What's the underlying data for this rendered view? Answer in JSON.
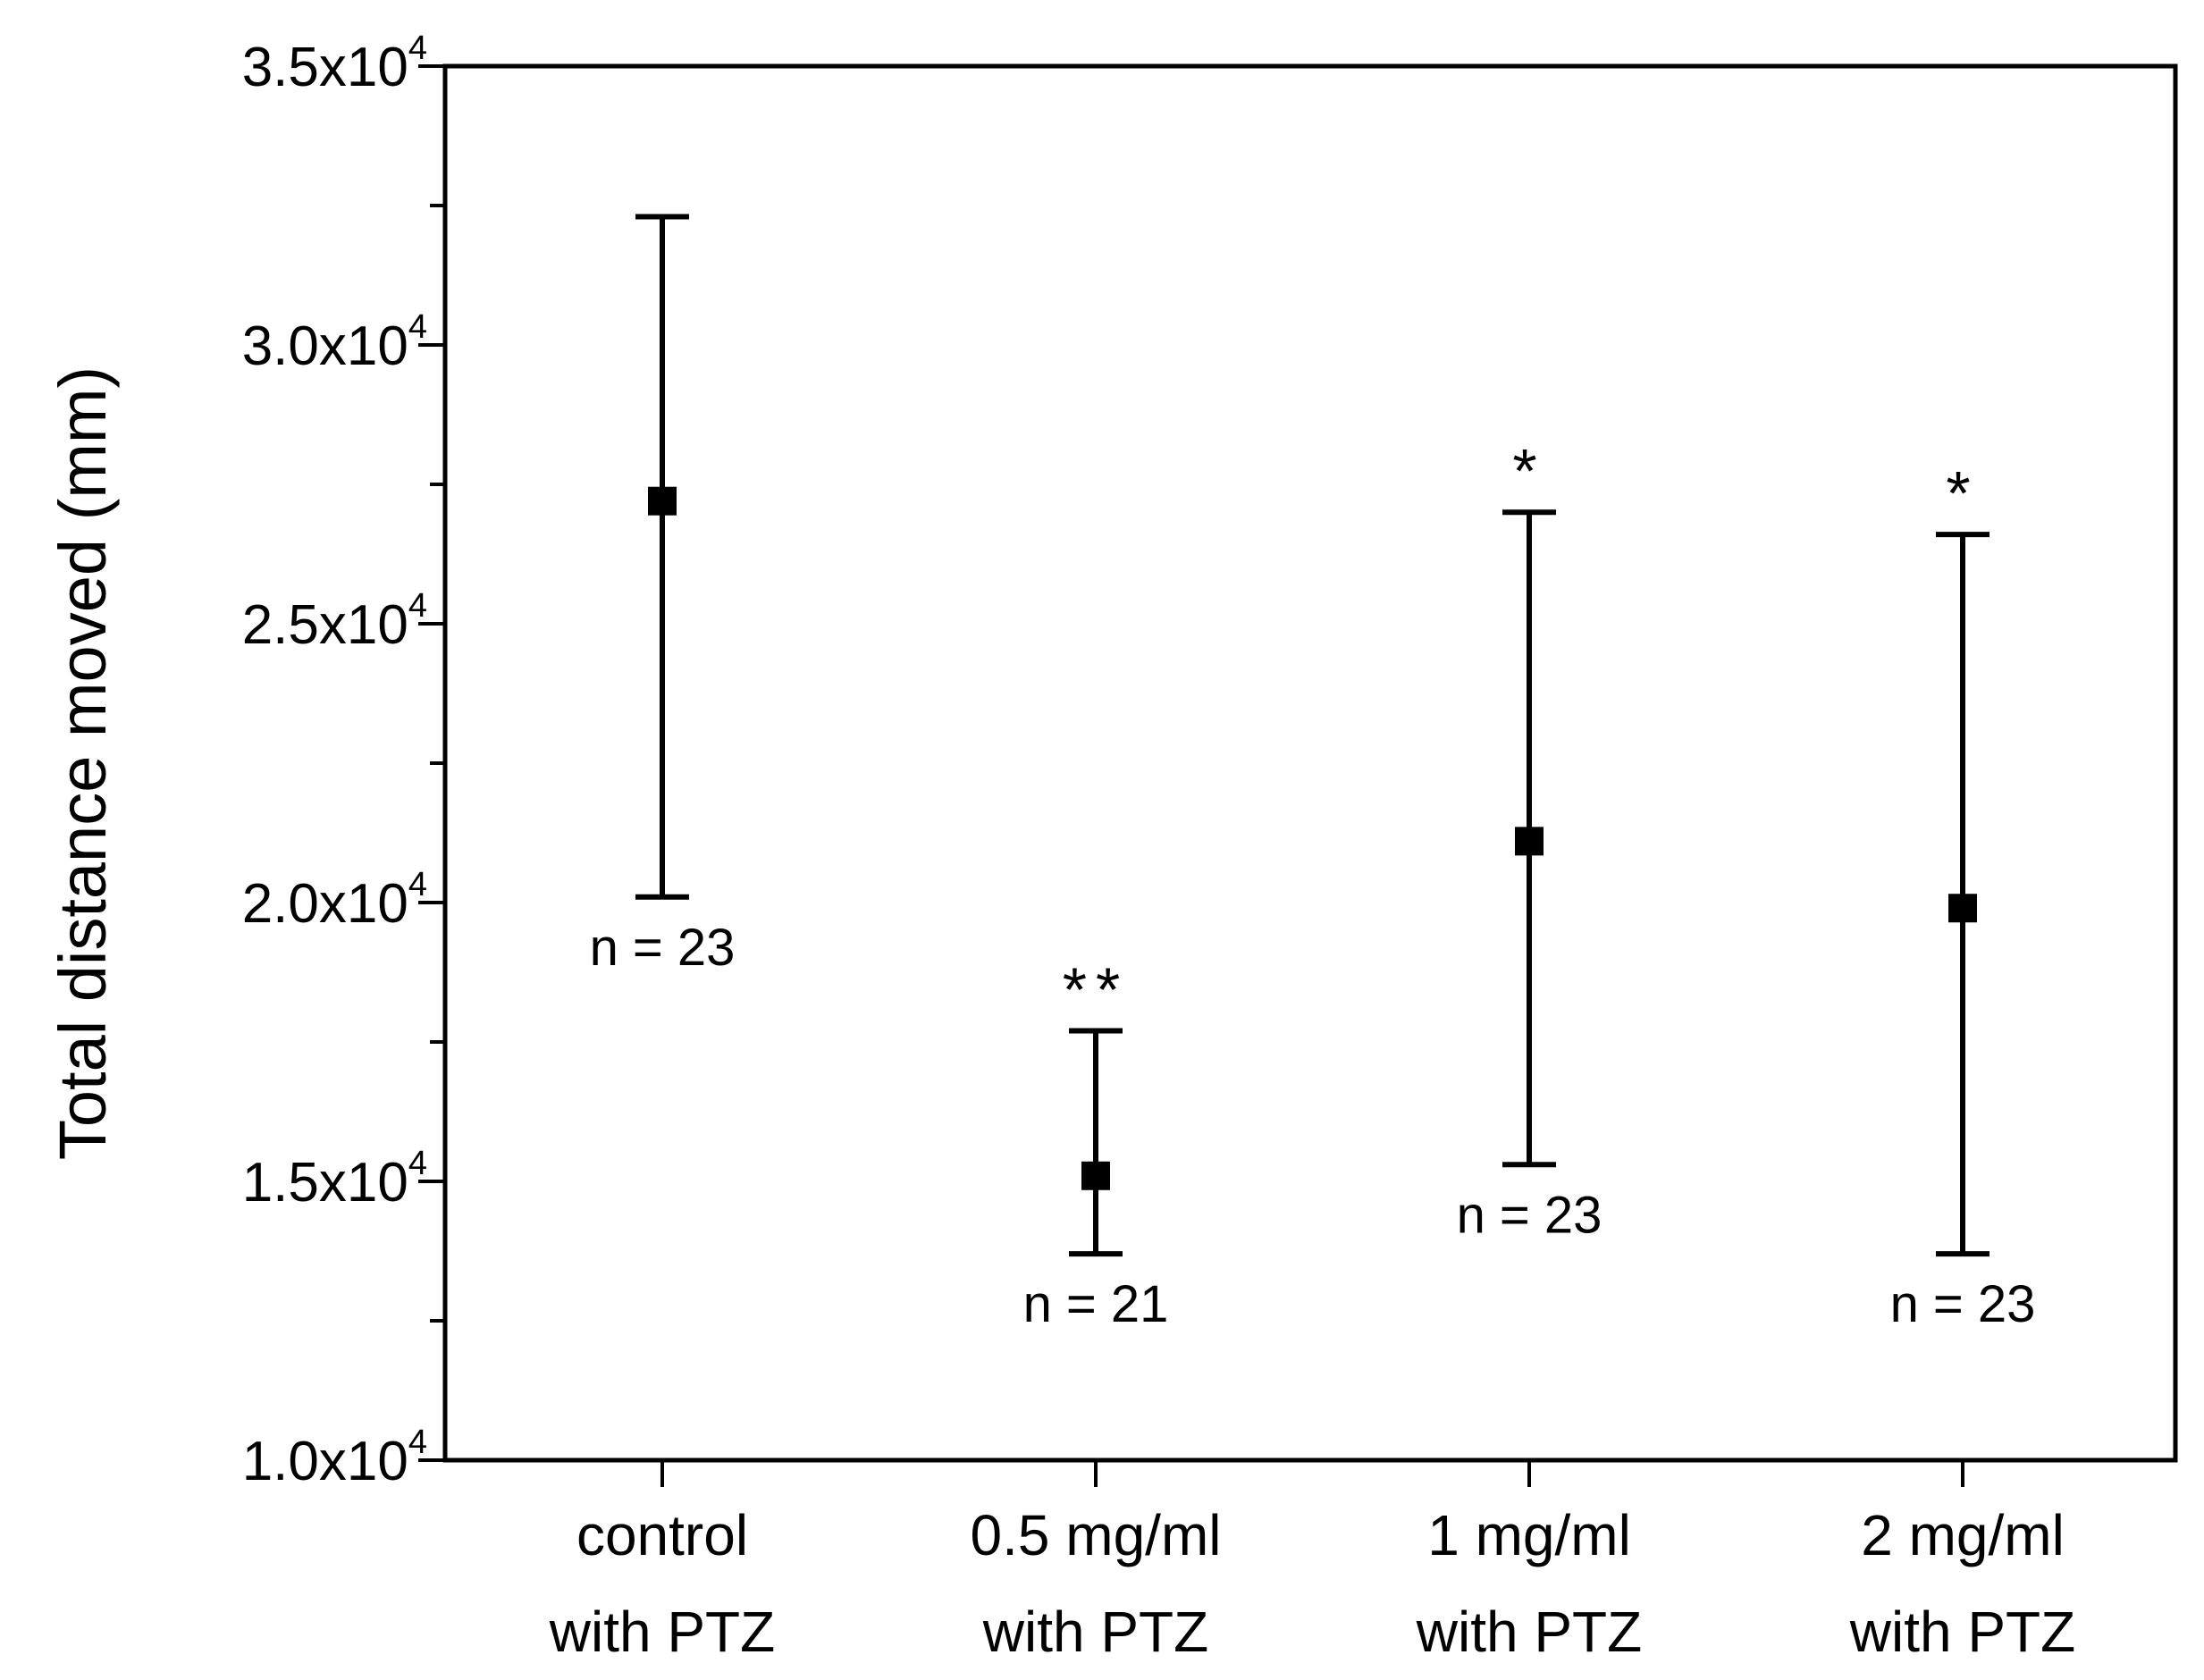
{
  "chart_data": {
    "type": "scatter",
    "title": "",
    "xlabel": "",
    "ylabel": "Total distance moved (mm)",
    "ylim": [
      10000,
      35000
    ],
    "grid": false,
    "categories": [
      [
        "control",
        "with PTZ"
      ],
      [
        "0.5 mg/ml",
        "with PTZ"
      ],
      [
        "1 mg/ml",
        "with PTZ"
      ],
      [
        "2 mg/ml",
        "with PTZ"
      ]
    ],
    "series": [
      {
        "name": "Total distance moved",
        "points": [
          {
            "mean": 27200,
            "upper": 32300,
            "lower": 20100,
            "n_label": "n = 23",
            "sig": ""
          },
          {
            "mean": 15100,
            "upper": 17700,
            "lower": 13700,
            "n_label": "n = 21",
            "sig": "**"
          },
          {
            "mean": 21100,
            "upper": 27000,
            "lower": 15300,
            "n_label": "n = 23",
            "sig": "*"
          },
          {
            "mean": 19900,
            "upper": 26600,
            "lower": 13700,
            "n_label": "n = 23",
            "sig": "*"
          }
        ]
      }
    ],
    "y_ticks": [
      {
        "value": 10000,
        "mantissa": "1.0x10",
        "exponent": "4"
      },
      {
        "value": 15000,
        "mantissa": "1.5x10",
        "exponent": "4"
      },
      {
        "value": 20000,
        "mantissa": "2.0x10",
        "exponent": "4"
      },
      {
        "value": 25000,
        "mantissa": "2.5x10",
        "exponent": "4"
      },
      {
        "value": 30000,
        "mantissa": "3.0x10",
        "exponent": "4"
      },
      {
        "value": 35000,
        "mantissa": "3.5x10",
        "exponent": "4"
      }
    ],
    "y_minor_ticks": [
      12500,
      17500,
      22500,
      27500,
      32500
    ],
    "colors": {
      "marker": "#000000",
      "axis": "#000000"
    }
  }
}
